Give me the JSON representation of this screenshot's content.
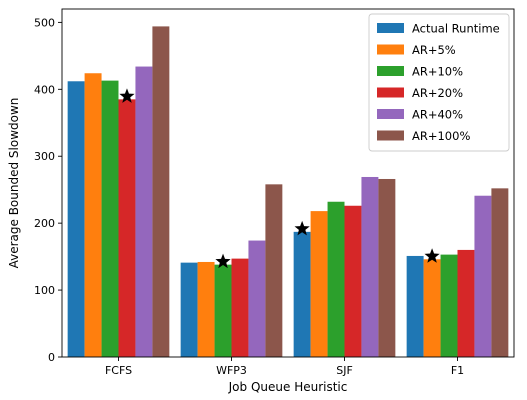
{
  "chart_data": {
    "type": "bar",
    "title": "",
    "xlabel": "Job Queue Heuristic",
    "ylabel": "Average Bounded Slowdown",
    "categories": [
      "FCFS",
      "WFP3",
      "SJF",
      "F1"
    ],
    "ylim": [
      0,
      520
    ],
    "yticks": [
      0,
      100,
      200,
      300,
      400,
      500
    ],
    "grid": false,
    "legend_position": "top-right",
    "series": [
      {
        "name": "Actual Runtime",
        "color": "#1f77b4",
        "values": [
          412,
          141,
          187,
          151
        ]
      },
      {
        "name": "AR+5%",
        "color": "#ff7f0e",
        "values": [
          424,
          142,
          218,
          146
        ]
      },
      {
        "name": "AR+10%",
        "color": "#2ca02c",
        "values": [
          413,
          138,
          232,
          153
        ]
      },
      {
        "name": "AR+20%",
        "color": "#d62728",
        "values": [
          385,
          147,
          226,
          160
        ]
      },
      {
        "name": "AR+40%",
        "color": "#9467bd",
        "values": [
          434,
          174,
          269,
          241
        ]
      },
      {
        "name": "AR+100%",
        "color": "#8c564b",
        "values": [
          494,
          258,
          266,
          252
        ]
      }
    ],
    "best_markers": [
      {
        "category": "FCFS",
        "series": "AR+20%",
        "symbol": "star"
      },
      {
        "category": "WFP3",
        "series": "AR+10%",
        "symbol": "star"
      },
      {
        "category": "SJF",
        "series": "Actual Runtime",
        "symbol": "star"
      },
      {
        "category": "F1",
        "series": "AR+5%",
        "symbol": "star"
      }
    ]
  }
}
